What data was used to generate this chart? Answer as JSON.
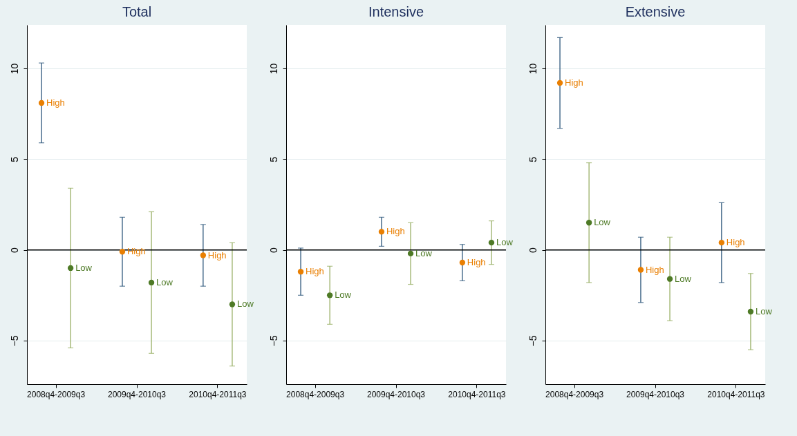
{
  "chart_data": [
    {
      "type": "scatter",
      "title": "Total",
      "categories": [
        "2008q4-2009q3",
        "2009q4-2010q3",
        "2010q4-2011q3"
      ],
      "ylim": [
        -7.4,
        12.4
      ],
      "yticks": [
        -5,
        0,
        5,
        10
      ],
      "grid": "y",
      "ref_lines": [
        {
          "axis": "y",
          "value": 0,
          "color": "#000000"
        }
      ],
      "series": [
        {
          "name": "High",
          "color": "#e97f02",
          "values": [
            8.1,
            -0.1,
            -0.3
          ],
          "errors": [
            [
              5.9,
              10.3
            ],
            [
              -2.0,
              1.8
            ],
            [
              -2.0,
              1.4
            ]
          ]
        },
        {
          "name": "Low",
          "color": "#4e7a26",
          "values": [
            -1.0,
            -1.8,
            -3.0
          ],
          "errors": [
            [
              -5.4,
              3.4
            ],
            [
              -5.7,
              2.1
            ],
            [
              -6.4,
              0.4
            ]
          ]
        }
      ]
    },
    {
      "type": "scatter",
      "title": "Intensive",
      "categories": [
        "2008q4-2009q3",
        "2009q4-2010q3",
        "2010q4-2011q3"
      ],
      "ylim": [
        -7.4,
        12.4
      ],
      "yticks": [
        -5,
        0,
        5,
        10
      ],
      "grid": "y",
      "ref_lines": [
        {
          "axis": "y",
          "value": 0,
          "color": "#000000"
        }
      ],
      "series": [
        {
          "name": "High",
          "color": "#e97f02",
          "values": [
            -1.2,
            1.0,
            -0.7
          ],
          "errors": [
            [
              -2.5,
              0.1
            ],
            [
              0.2,
              1.8
            ],
            [
              -1.7,
              0.3
            ]
          ]
        },
        {
          "name": "Low",
          "color": "#4e7a26",
          "values": [
            -2.5,
            -0.2,
            0.4
          ],
          "errors": [
            [
              -4.1,
              -0.9
            ],
            [
              -1.9,
              1.5
            ],
            [
              -0.8,
              1.6
            ]
          ]
        }
      ]
    },
    {
      "type": "scatter",
      "title": "Extensive",
      "categories": [
        "2008q4-2009q3",
        "2009q4-2010q3",
        "2010q4-2011q3"
      ],
      "ylim": [
        -7.4,
        12.4
      ],
      "yticks": [
        -5,
        0,
        5,
        10
      ],
      "grid": "y",
      "ref_lines": [
        {
          "axis": "y",
          "value": 0,
          "color": "#000000"
        }
      ],
      "series": [
        {
          "name": "High",
          "color": "#e97f02",
          "values": [
            9.2,
            -1.1,
            0.4
          ],
          "errors": [
            [
              6.7,
              11.7
            ],
            [
              -2.9,
              0.7
            ],
            [
              -1.8,
              2.6
            ]
          ]
        },
        {
          "name": "Low",
          "color": "#4e7a26",
          "values": [
            1.5,
            -1.6,
            -3.4
          ],
          "errors": [
            [
              -1.8,
              4.8
            ],
            [
              -3.9,
              0.7
            ],
            [
              -5.5,
              -1.3
            ]
          ]
        }
      ]
    }
  ]
}
